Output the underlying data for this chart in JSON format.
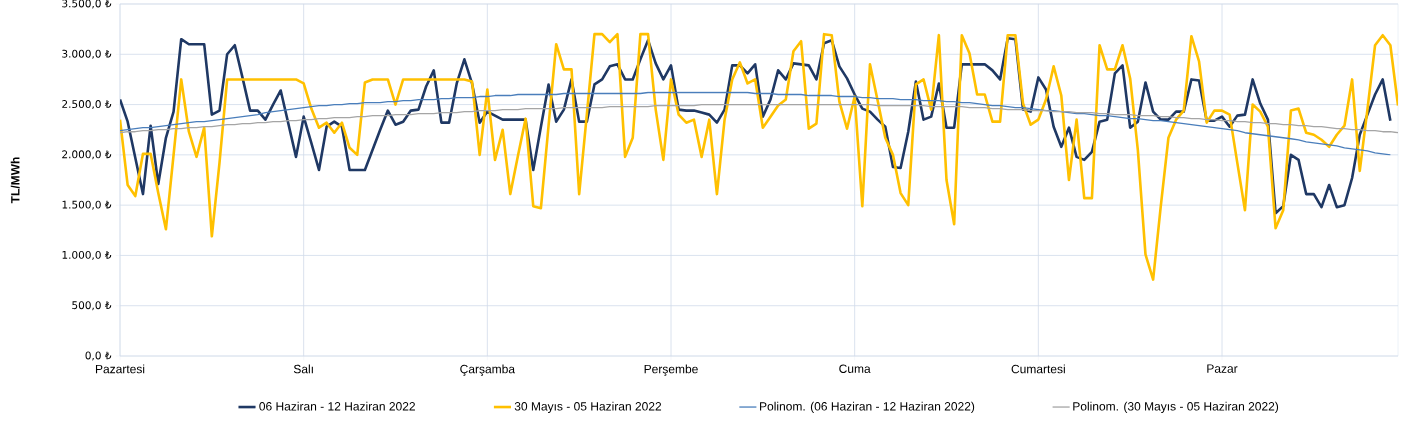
{
  "chart_data": {
    "type": "line",
    "ylabel": "TL/MWh",
    "ylim": [
      0,
      3500
    ],
    "categories": [
      "Pazartesi",
      null,
      null,
      null,
      null,
      null,
      null,
      null,
      null,
      null,
      null,
      null,
      null,
      null,
      null,
      null,
      null,
      null,
      null,
      null,
      null,
      null,
      null,
      null,
      "Salı",
      null,
      null,
      null,
      null,
      null,
      null,
      null,
      null,
      null,
      null,
      null,
      null,
      null,
      null,
      null,
      null,
      null,
      null,
      null,
      null,
      null,
      null,
      null,
      "Çarşamba",
      null,
      null,
      null,
      null,
      null,
      null,
      null,
      null,
      null,
      null,
      null,
      null,
      null,
      null,
      null,
      null,
      null,
      null,
      null,
      null,
      null,
      null,
      null,
      "Perşembe",
      null,
      null,
      null,
      null,
      null,
      null,
      null,
      null,
      null,
      null,
      null,
      null,
      null,
      null,
      null,
      null,
      null,
      null,
      null,
      null,
      null,
      null,
      null,
      "Cuma",
      null,
      null,
      null,
      null,
      null,
      null,
      null,
      null,
      null,
      null,
      null,
      null,
      null,
      null,
      null,
      null,
      null,
      null,
      null,
      null,
      null,
      null,
      null,
      "Cumartesi",
      null,
      null,
      null,
      null,
      null,
      null,
      null,
      null,
      null,
      null,
      null,
      null,
      null,
      null,
      null,
      null,
      null,
      null,
      null,
      null,
      null,
      null,
      null,
      "Pazar",
      null,
      null,
      null,
      null,
      null,
      null,
      null,
      null,
      null,
      null,
      null,
      null,
      null,
      null,
      null,
      null,
      null,
      null,
      null,
      null,
      null,
      null,
      null
    ],
    "yticks": [
      {
        "value": 0,
        "label": "0,0 ₺"
      },
      {
        "value": 500,
        "label": "500,0 ₺"
      },
      {
        "value": 1000,
        "label": "1.000,0 ₺"
      },
      {
        "value": 1500,
        "label": "1.500,0 ₺"
      },
      {
        "value": 2000,
        "label": "2.000,0 ₺"
      },
      {
        "value": 2500,
        "label": "2.500,0 ₺"
      },
      {
        "value": 3000,
        "label": "3.000,0 ₺"
      },
      {
        "value": 3500,
        "label": "3.500,0 ₺"
      }
    ],
    "grid": true,
    "legend": "bottom",
    "marker": "none",
    "series": [
      {
        "name": "06 Haziran - 12 Haziran 2022",
        "color": "#1f3864",
        "values": [
          2550,
          2330,
          1970,
          1610,
          2290,
          1710,
          2170,
          2430,
          3150,
          3100,
          3100,
          3100,
          2400,
          2440,
          3000,
          3090,
          2770,
          2440,
          2440,
          2350,
          2500,
          2640,
          2310,
          1980,
          2380,
          2120,
          1850,
          2280,
          2330,
          2280,
          1850,
          1850,
          1850,
          2050,
          2250,
          2440,
          2300,
          2330,
          2440,
          2450,
          2680,
          2840,
          2320,
          2320,
          2710,
          2950,
          2710,
          2320,
          2430,
          2390,
          2350,
          2350,
          2350,
          2350,
          1850,
          2280,
          2700,
          2330,
          2450,
          2750,
          2330,
          2330,
          2700,
          2750,
          2880,
          2900,
          2750,
          2750,
          2950,
          3140,
          2910,
          2750,
          2890,
          2450,
          2440,
          2440,
          2420,
          2400,
          2320,
          2450,
          2890,
          2890,
          2810,
          2900,
          2380,
          2550,
          2840,
          2750,
          2910,
          2900,
          2890,
          2750,
          3110,
          3140,
          2880,
          2760,
          2600,
          2460,
          2430,
          2350,
          2280,
          1880,
          1870,
          2230,
          2730,
          2350,
          2380,
          2710,
          2270,
          2270,
          2900,
          2900,
          2900,
          2900,
          2840,
          2750,
          3160,
          3150,
          2450,
          2430,
          2770,
          2650,
          2280,
          2080,
          2270,
          1980,
          1950,
          2030,
          2330,
          2350,
          2810,
          2890,
          2270,
          2330,
          2720,
          2430,
          2350,
          2350,
          2430,
          2430,
          2750,
          2740,
          2340,
          2340,
          2380,
          2280,
          2390,
          2400,
          2750,
          2510,
          2350,
          1420,
          1490,
          2000,
          1950,
          1610,
          1610,
          1480,
          1700,
          1480,
          1500,
          1770,
          2200,
          2400,
          2600,
          2750,
          2340,
          null
        ]
      },
      {
        "name": "30 Mayıs - 05 Haziran 2022",
        "color": "#ffc000",
        "values": [
          2350,
          1700,
          1590,
          2010,
          2010,
          1620,
          1260,
          2000,
          2750,
          2230,
          1980,
          2270,
          1190,
          1920,
          2750,
          2750,
          2750,
          2750,
          2750,
          2750,
          2750,
          2750,
          2750,
          2750,
          2710,
          2460,
          2270,
          2320,
          2220,
          2320,
          2070,
          2000,
          2720,
          2750,
          2750,
          2750,
          2500,
          2750,
          2750,
          2750,
          2750,
          2750,
          2750,
          2750,
          2750,
          2750,
          2730,
          2000,
          2650,
          1950,
          2250,
          1610,
          1990,
          2360,
          1490,
          1470,
          2290,
          3100,
          2850,
          2850,
          1610,
          2400,
          3200,
          3200,
          3120,
          3200,
          1980,
          2170,
          3200,
          3200,
          2450,
          1950,
          2750,
          2400,
          2320,
          2350,
          1980,
          2350,
          1610,
          2350,
          2750,
          2920,
          2710,
          2750,
          2270,
          2380,
          2490,
          2550,
          3030,
          3130,
          2260,
          2310,
          3200,
          3190,
          2530,
          2260,
          2580,
          1490,
          2900,
          2540,
          2170,
          2000,
          1620,
          1500,
          2700,
          2750,
          2450,
          3190,
          1750,
          1310,
          3190,
          3010,
          2600,
          2600,
          2330,
          2330,
          3190,
          3190,
          2510,
          2300,
          2350,
          2550,
          2880,
          2590,
          1750,
          2350,
          1570,
          1570,
          3090,
          2850,
          2850,
          3090,
          2760,
          2050,
          1010,
          760,
          1490,
          2170,
          2350,
          2440,
          3180,
          2930,
          2320,
          2440,
          2440,
          2400,
          1920,
          1450,
          2500,
          2430,
          2280,
          1270,
          1450,
          2440,
          2460,
          2220,
          2200,
          2150,
          2080,
          2200,
          2290,
          2750,
          1840,
          2450,
          3090,
          3190,
          3090,
          2490
        ]
      },
      {
        "name": "Polinom. (06 Haziran - 12 Haziran 2022)",
        "color": "#4a7ebb",
        "values": [
          2240,
          2250,
          2260,
          2270,
          2270,
          2280,
          2290,
          2300,
          2310,
          2320,
          2330,
          2330,
          2340,
          2350,
          2360,
          2370,
          2380,
          2390,
          2400,
          2420,
          2430,
          2440,
          2450,
          2460,
          2470,
          2480,
          2490,
          2490,
          2500,
          2500,
          2510,
          2510,
          2520,
          2520,
          2520,
          2530,
          2530,
          2540,
          2540,
          2550,
          2550,
          2550,
          2560,
          2560,
          2570,
          2570,
          2570,
          2580,
          2580,
          2590,
          2590,
          2590,
          2600,
          2600,
          2600,
          2600,
          2600,
          2600,
          2610,
          2610,
          2610,
          2610,
          2610,
          2610,
          2610,
          2610,
          2610,
          2610,
          2610,
          2620,
          2620,
          2620,
          2620,
          2620,
          2620,
          2620,
          2620,
          2620,
          2620,
          2620,
          2620,
          2620,
          2620,
          2610,
          2610,
          2610,
          2600,
          2600,
          2600,
          2600,
          2590,
          2590,
          2590,
          2590,
          2580,
          2580,
          2580,
          2570,
          2570,
          2560,
          2560,
          2560,
          2550,
          2550,
          2550,
          2540,
          2540,
          2540,
          2530,
          2530,
          2520,
          2520,
          2510,
          2500,
          2490,
          2490,
          2480,
          2470,
          2470,
          2460,
          2450,
          2440,
          2440,
          2430,
          2420,
          2410,
          2410,
          2400,
          2390,
          2390,
          2380,
          2370,
          2360,
          2360,
          2350,
          2340,
          2340,
          2330,
          2320,
          2310,
          2300,
          2290,
          2280,
          2270,
          2260,
          2250,
          2240,
          2220,
          2210,
          2200,
          2190,
          2180,
          2170,
          2160,
          2150,
          2130,
          2120,
          2110,
          2100,
          2090,
          2070,
          2060,
          2050,
          2040,
          2020,
          2010,
          2000,
          null
        ]
      },
      {
        "name": "Polinom. (30 Mayıs - 05 Haziran 2022)",
        "color": "#a5a5a5",
        "values": [
          2220,
          2230,
          2230,
          2240,
          2240,
          2250,
          2250,
          2260,
          2260,
          2270,
          2270,
          2280,
          2280,
          2290,
          2300,
          2300,
          2310,
          2310,
          2320,
          2320,
          2330,
          2330,
          2340,
          2340,
          2350,
          2350,
          2360,
          2360,
          2370,
          2370,
          2370,
          2380,
          2380,
          2390,
          2390,
          2390,
          2400,
          2400,
          2400,
          2410,
          2410,
          2410,
          2420,
          2420,
          2420,
          2430,
          2430,
          2440,
          2440,
          2440,
          2450,
          2450,
          2450,
          2460,
          2460,
          2460,
          2460,
          2460,
          2470,
          2470,
          2470,
          2470,
          2470,
          2470,
          2480,
          2480,
          2480,
          2480,
          2480,
          2480,
          2490,
          2490,
          2490,
          2490,
          2490,
          2490,
          2500,
          2500,
          2500,
          2500,
          2500,
          2500,
          2500,
          2500,
          2500,
          2500,
          2500,
          2500,
          2500,
          2500,
          2500,
          2500,
          2500,
          2500,
          2500,
          2500,
          2500,
          2500,
          2500,
          2490,
          2490,
          2490,
          2490,
          2490,
          2490,
          2490,
          2480,
          2480,
          2480,
          2480,
          2480,
          2470,
          2470,
          2470,
          2460,
          2460,
          2450,
          2450,
          2450,
          2440,
          2440,
          2440,
          2430,
          2430,
          2430,
          2420,
          2420,
          2420,
          2410,
          2410,
          2400,
          2400,
          2400,
          2390,
          2390,
          2390,
          2380,
          2380,
          2370,
          2370,
          2360,
          2360,
          2350,
          2350,
          2340,
          2340,
          2330,
          2330,
          2320,
          2320,
          2310,
          2310,
          2300,
          2300,
          2290,
          2290,
          2280,
          2280,
          2270,
          2260,
          2260,
          2250,
          2250,
          2240,
          2240,
          2230,
          2230,
          2220
        ]
      }
    ]
  }
}
